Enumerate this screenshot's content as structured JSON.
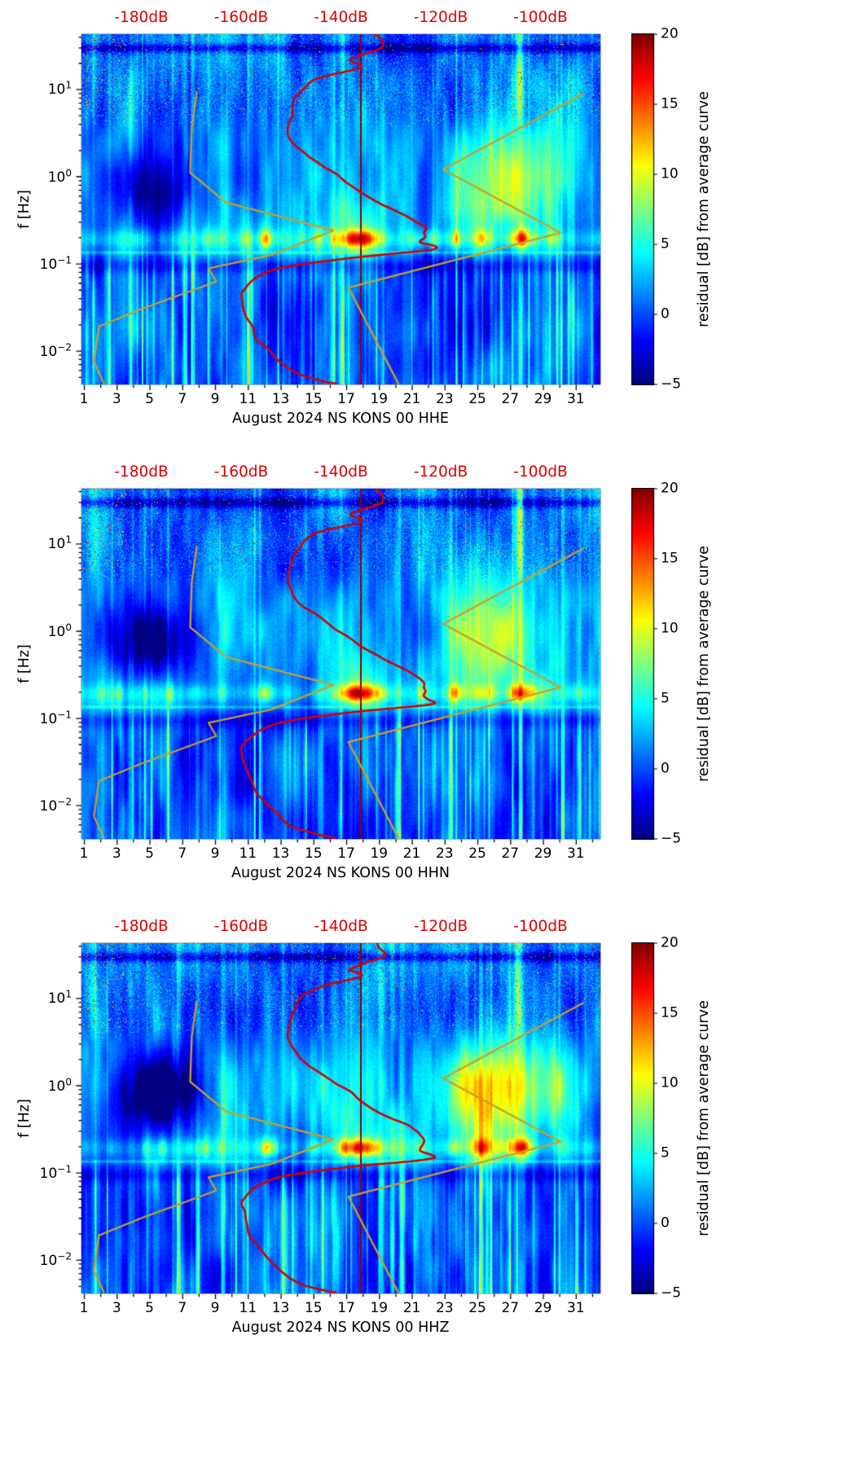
{
  "colors": {
    "background": "#ffffff",
    "frame": "#000000",
    "text": "#000000",
    "top_axis_label": "#dd0000",
    "average_curve": "#d40000",
    "model_curve": "#c8a028"
  },
  "axes": {
    "ylabel": "f [Hz]",
    "x_range_days": [
      0.85,
      32.5
    ],
    "f_range_hz": [
      0.0041,
      42.7
    ],
    "db_range": [
      -192,
      -88
    ],
    "x_ticks": [
      {
        "label": "1",
        "day": 1
      },
      {
        "label": "3",
        "day": 3
      },
      {
        "label": "5",
        "day": 5
      },
      {
        "label": "7",
        "day": 7
      },
      {
        "label": "9",
        "day": 9
      },
      {
        "label": "11",
        "day": 11
      },
      {
        "label": "13",
        "day": 13
      },
      {
        "label": "15",
        "day": 15
      },
      {
        "label": "17",
        "day": 17
      },
      {
        "label": "19",
        "day": 19
      },
      {
        "label": "21",
        "day": 21
      },
      {
        "label": "23",
        "day": 23
      },
      {
        "label": "25",
        "day": 25
      },
      {
        "label": "27",
        "day": 27
      },
      {
        "label": "29",
        "day": 29
      },
      {
        "label": "31",
        "day": 31
      }
    ],
    "y_ticks": [
      {
        "base": "10",
        "exp": "1",
        "value": 10
      },
      {
        "base": "10",
        "exp": "0",
        "value": 1
      },
      {
        "base": "10",
        "exp": "−1",
        "value": 0.1
      },
      {
        "base": "10",
        "exp": "−2",
        "value": 0.01
      }
    ],
    "top_ticks": [
      {
        "label": "-180dB",
        "db": -180
      },
      {
        "label": "-160dB",
        "db": -160
      },
      {
        "label": "-140dB",
        "db": -140
      },
      {
        "label": "-120dB",
        "db": -120
      },
      {
        "label": "-100dB",
        "db": -100
      }
    ]
  },
  "colorbar": {
    "label": "residual [dB] from average curve",
    "vmin": -5,
    "vmax": 20,
    "colormap": "jet",
    "ticks": [
      {
        "label": "20",
        "value": 20
      },
      {
        "label": "15",
        "value": 15
      },
      {
        "label": "10",
        "value": 10
      },
      {
        "label": "5",
        "value": 5
      },
      {
        "label": "0",
        "value": 0
      },
      {
        "label": "−5",
        "value": -5
      }
    ]
  },
  "panels": [
    {
      "id": "HHE",
      "xlabel": "August 2024 NS KONS 00 HHE",
      "seed": 11,
      "warm": 1.0,
      "blob": 1.0
    },
    {
      "id": "HHN",
      "xlabel": "August 2024 NS KONS 00 HHN",
      "seed": 47,
      "warm": 0.92,
      "blob": 0.95
    },
    {
      "id": "HHZ",
      "xlabel": "August 2024 NS KONS 00 HHZ",
      "seed": 83,
      "warm": 1.12,
      "blob": 1.1
    }
  ],
  "chart_data": {
    "type": "heatmap",
    "panels": [
      "HHE",
      "HHN",
      "HHZ"
    ],
    "x": {
      "label": "Day of August 2024",
      "range": [
        1,
        32
      ],
      "ticks": [
        1,
        3,
        5,
        7,
        9,
        11,
        13,
        15,
        17,
        19,
        21,
        23,
        25,
        27,
        29,
        31
      ]
    },
    "y": {
      "label": "f [Hz]",
      "scale": "log",
      "range_hz": [
        0.0041,
        42.7
      ],
      "ticks_hz": [
        0.01,
        0.1,
        1,
        10
      ]
    },
    "z": {
      "label": "residual [dB] from average curve",
      "range_db": [
        -5,
        20
      ],
      "colormap": "jet"
    },
    "top_axis": {
      "ticks_db": [
        -180,
        -160,
        -140,
        -120,
        -100
      ],
      "range_db": [
        -192,
        -88
      ]
    },
    "curves": {
      "average_psd": {
        "color": "red",
        "points_db_hz": [
          [
            -133,
            43
          ],
          [
            -131.5,
            30
          ],
          [
            -138,
            22
          ],
          [
            -136,
            18
          ],
          [
            -145,
            13
          ],
          [
            -148.5,
            9
          ],
          [
            -149.5,
            6
          ],
          [
            -150.5,
            3.4
          ],
          [
            -148.5,
            2.1
          ],
          [
            -143.5,
            1.35
          ],
          [
            -138.5,
            0.85
          ],
          [
            -132.5,
            0.5
          ],
          [
            -126,
            0.33
          ],
          [
            -123,
            0.24
          ],
          [
            -123.8,
            0.18
          ],
          [
            -122,
            0.145
          ],
          [
            -138.5,
            0.115
          ],
          [
            -153,
            0.086
          ],
          [
            -158.5,
            0.058
          ],
          [
            -159.5,
            0.037
          ],
          [
            -158,
            0.019
          ],
          [
            -154.5,
            0.0097
          ],
          [
            -149,
            0.0055
          ],
          [
            -141,
            0.0042
          ]
        ]
      },
      "low_noise_model": {
        "color": "dark-yellow",
        "points_db_hz": [
          [
            -168.9,
            9.2
          ],
          [
            -169.9,
            3.6
          ],
          [
            -170.2,
            1.1
          ],
          [
            -163,
            0.5
          ],
          [
            -141.5,
            0.24
          ],
          [
            -154,
            0.125
          ],
          [
            -166.5,
            0.088
          ],
          [
            -165,
            0.062
          ],
          [
            -180,
            0.03
          ],
          [
            -188.5,
            0.019
          ],
          [
            -189.5,
            0.0075
          ],
          [
            -187.5,
            0.0042
          ]
        ]
      },
      "high_noise_model": {
        "color": "dark-yellow",
        "points_db_hz": [
          [
            -91.5,
            8.8
          ],
          [
            -119.5,
            1.2
          ],
          [
            -96,
            0.225
          ],
          [
            -138.5,
            0.053
          ],
          [
            -128.5,
            0.0042
          ]
        ]
      }
    },
    "features": [
      "bright residual band at 0.13-0.3 Hz across the whole month, strongest Aug 17-19 and Aug 27-28 (residual 15-20 dB)",
      "broad elevated residuals (5-12 dB) Aug 23-30 between 0.2 and 3 Hz",
      "negative residuals (-3 to -5 dB, dark blue) Aug 2-9 between 0.2 and 1.5 Hz",
      "numerous short-duration vertical stripes of 5-15 dB below 0.1 Hz throughout the month",
      "speckled impulsive noise above 5 Hz, densest Aug 1-3 and near Aug 27-28",
      "thin full-height anomaly column near Aug 17.9",
      "dark narrow horizontal band near 30 Hz"
    ]
  }
}
